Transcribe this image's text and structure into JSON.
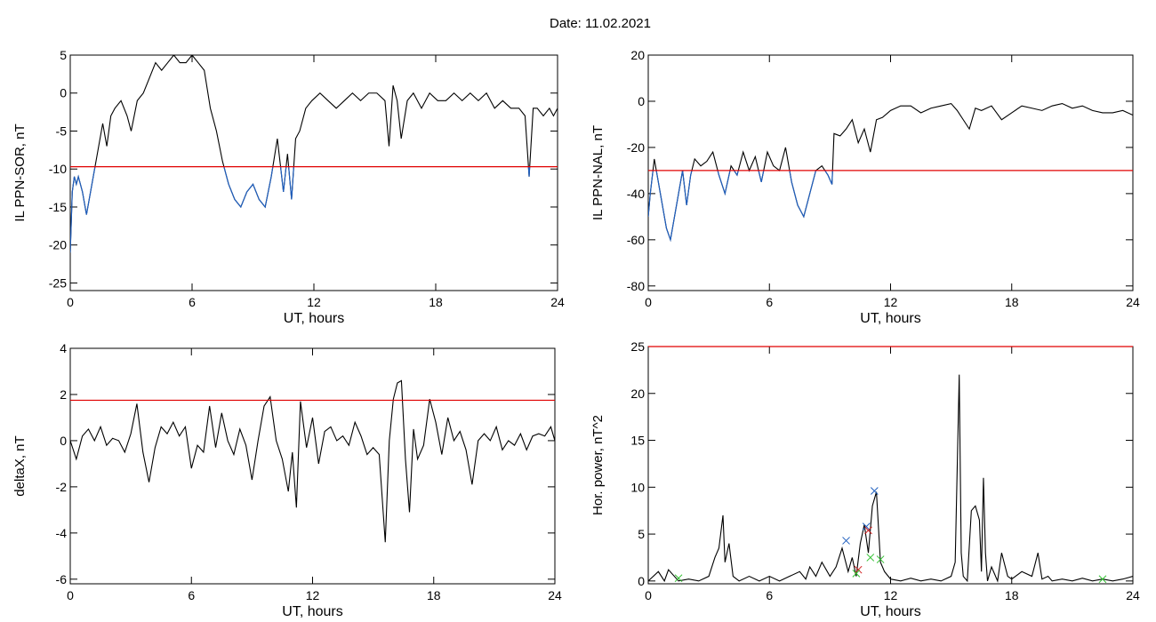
{
  "title": "Date:  11.02.2021",
  "colors": {
    "series": "#000000",
    "highlight": "#1f5fbf",
    "threshold": "#e00000",
    "marker_blue": "#1f5fbf",
    "marker_red": "#d02020",
    "marker_green": "#30c030"
  },
  "chart_data": [
    {
      "type": "line",
      "ylabel": "IL PPN-SOR, nT",
      "xlabel": "UT, hours",
      "xlim": [
        0,
        24
      ],
      "ylim": [
        -26,
        5
      ],
      "xticks": [
        0,
        6,
        12,
        18,
        24
      ],
      "yticks": [
        5,
        0,
        -5,
        -10,
        -15,
        -20,
        -25
      ],
      "threshold": -9.7,
      "highlight_below_threshold": true,
      "series": [
        {
          "x": [
            0,
            0.1,
            0.2,
            0.3,
            0.4,
            0.6,
            0.8,
            1.0,
            1.2,
            1.4,
            1.6,
            1.8,
            2.0,
            2.2,
            2.5,
            2.8,
            3.0,
            3.3,
            3.6,
            3.9,
            4.2,
            4.5,
            4.8,
            5.1,
            5.4,
            5.7,
            6.0,
            6.3,
            6.6,
            6.9,
            7.2,
            7.5,
            7.8,
            8.1,
            8.4,
            8.7,
            9.0,
            9.3,
            9.6,
            9.9,
            10.2,
            10.5,
            10.7,
            10.9,
            11.1,
            11.3,
            11.6,
            11.9,
            12.3,
            12.7,
            13.1,
            13.5,
            13.9,
            14.3,
            14.7,
            15.1,
            15.5,
            15.7,
            15.9,
            16.1,
            16.3,
            16.6,
            16.9,
            17.3,
            17.7,
            18.1,
            18.5,
            18.9,
            19.3,
            19.7,
            20.1,
            20.5,
            20.9,
            21.3,
            21.7,
            22.1,
            22.4,
            22.6,
            22.8,
            23.0,
            23.3,
            23.6,
            23.8,
            24.0
          ],
          "y": [
            -21,
            -13,
            -11,
            -12,
            -11,
            -13,
            -16,
            -13,
            -10,
            -7,
            -4,
            -7,
            -3,
            -2,
            -1,
            -3,
            -5,
            -1,
            0,
            2,
            4,
            3,
            4,
            5,
            4,
            4,
            5,
            4,
            3,
            -2,
            -5,
            -9,
            -12,
            -14,
            -15,
            -13,
            -12,
            -14,
            -15,
            -11,
            -6,
            -13,
            -8,
            -14,
            -6,
            -5,
            -2,
            -1,
            0,
            -1,
            -2,
            -1,
            0,
            -1,
            0,
            0,
            -1,
            -7,
            1,
            -1,
            -6,
            -1,
            0,
            -2,
            0,
            -1,
            -1,
            0,
            -1,
            0,
            -1,
            0,
            -2,
            -1,
            -2,
            -2,
            -3,
            -11,
            -2,
            -2,
            -3,
            -2,
            -3,
            -2
          ]
        }
      ]
    },
    {
      "type": "line",
      "ylabel": "IL PPN-NAL, nT",
      "xlabel": "UT, hours",
      "xlim": [
        0,
        24
      ],
      "ylim": [
        -82,
        20
      ],
      "xticks": [
        0,
        6,
        12,
        18,
        24
      ],
      "yticks": [
        20,
        0,
        -20,
        -40,
        -60,
        -80
      ],
      "threshold": -30,
      "highlight_below_threshold": true,
      "series": [
        {
          "x": [
            0,
            0.1,
            0.3,
            0.5,
            0.7,
            0.9,
            1.1,
            1.3,
            1.5,
            1.7,
            1.9,
            2.1,
            2.3,
            2.6,
            2.9,
            3.2,
            3.5,
            3.8,
            4.1,
            4.4,
            4.7,
            5.0,
            5.3,
            5.6,
            5.9,
            6.2,
            6.5,
            6.8,
            7.1,
            7.4,
            7.7,
            8.0,
            8.3,
            8.6,
            8.9,
            9.1,
            9.2,
            9.5,
            9.8,
            10.1,
            10.4,
            10.7,
            11.0,
            11.3,
            11.6,
            12.0,
            12.5,
            13.0,
            13.5,
            14.0,
            14.5,
            15.0,
            15.3,
            15.6,
            15.9,
            16.2,
            16.5,
            17.0,
            17.5,
            18.0,
            18.5,
            19.0,
            19.5,
            20.0,
            20.5,
            21.0,
            21.5,
            22.0,
            22.5,
            23.0,
            23.5,
            24.0
          ],
          "y": [
            -50,
            -40,
            -25,
            -35,
            -45,
            -55,
            -60,
            -50,
            -40,
            -30,
            -45,
            -32,
            -25,
            -28,
            -26,
            -22,
            -32,
            -40,
            -28,
            -32,
            -22,
            -30,
            -24,
            -35,
            -22,
            -28,
            -30,
            -20,
            -35,
            -45,
            -50,
            -40,
            -30,
            -28,
            -32,
            -36,
            -14,
            -15,
            -12,
            -8,
            -18,
            -12,
            -22,
            -8,
            -7,
            -4,
            -2,
            -2,
            -5,
            -3,
            -2,
            -1,
            -4,
            -8,
            -12,
            -3,
            -4,
            -2,
            -8,
            -5,
            -2,
            -3,
            -4,
            -2,
            -1,
            -3,
            -2,
            -4,
            -5,
            -5,
            -4,
            -6
          ]
        }
      ]
    },
    {
      "type": "line",
      "ylabel": "deltaX, nT",
      "xlabel": "UT, hours",
      "xlim": [
        0,
        24
      ],
      "ylim": [
        -6.2,
        4
      ],
      "xticks": [
        0,
        6,
        12,
        18,
        24
      ],
      "yticks": [
        4,
        2,
        0,
        -2,
        -4,
        -6
      ],
      "threshold": 1.75,
      "highlight_below_threshold": false,
      "series": [
        {
          "x": [
            0,
            0.3,
            0.6,
            0.9,
            1.2,
            1.5,
            1.8,
            2.1,
            2.4,
            2.7,
            3.0,
            3.3,
            3.6,
            3.9,
            4.2,
            4.5,
            4.8,
            5.1,
            5.4,
            5.7,
            6.0,
            6.3,
            6.6,
            6.9,
            7.2,
            7.5,
            7.8,
            8.1,
            8.4,
            8.7,
            9.0,
            9.3,
            9.6,
            9.9,
            10.2,
            10.5,
            10.8,
            11.0,
            11.2,
            11.4,
            11.7,
            12.0,
            12.3,
            12.6,
            12.9,
            13.2,
            13.5,
            13.8,
            14.1,
            14.4,
            14.7,
            15.0,
            15.3,
            15.6,
            15.8,
            16.0,
            16.2,
            16.4,
            16.6,
            16.8,
            17.0,
            17.2,
            17.5,
            17.8,
            18.1,
            18.4,
            18.7,
            19.0,
            19.3,
            19.6,
            19.9,
            20.2,
            20.5,
            20.8,
            21.1,
            21.4,
            21.7,
            22.0,
            22.3,
            22.6,
            22.9,
            23.2,
            23.5,
            23.8,
            24.0
          ],
          "y": [
            0,
            -0.8,
            0.2,
            0.5,
            0,
            0.6,
            -0.2,
            0.1,
            0,
            -0.5,
            0.3,
            1.6,
            -0.5,
            -1.8,
            -0.3,
            0.6,
            0.3,
            0.8,
            0.2,
            0.6,
            -1.2,
            -0.2,
            -0.5,
            1.5,
            -0.3,
            1.2,
            0,
            -0.6,
            0.5,
            -0.2,
            -1.7,
            0,
            1.5,
            1.9,
            0,
            -0.8,
            -2.2,
            -0.5,
            -2.9,
            1.7,
            -0.3,
            1.0,
            -1.0,
            0.4,
            0.6,
            0,
            0.2,
            -0.2,
            0.8,
            0.2,
            -0.6,
            -0.3,
            -0.6,
            -4.4,
            0,
            1.8,
            2.5,
            2.6,
            -0.8,
            -3.1,
            0.5,
            -0.8,
            -0.2,
            1.8,
            0.8,
            -0.6,
            1,
            0,
            0.4,
            -0.4,
            -1.9,
            0,
            0.3,
            0,
            0.6,
            -0.4,
            0,
            -0.2,
            0.3,
            -0.4,
            0.2,
            0.3,
            0.2,
            0.6,
            0
          ]
        }
      ]
    },
    {
      "type": "line",
      "ylabel": "Hor. power, nT^2",
      "xlabel": "UT, hours",
      "xlim": [
        0,
        24
      ],
      "ylim": [
        -0.3,
        25
      ],
      "xticks": [
        0,
        6,
        12,
        18,
        24
      ],
      "yticks": [
        25,
        20,
        15,
        10,
        5,
        0
      ],
      "threshold": 25,
      "highlight_below_threshold": false,
      "series": [
        {
          "x": [
            0,
            0.5,
            0.8,
            1.0,
            1.5,
            2.0,
            2.5,
            3.0,
            3.3,
            3.5,
            3.7,
            3.8,
            4.0,
            4.2,
            4.5,
            5.0,
            5.5,
            6.0,
            6.5,
            7.0,
            7.5,
            7.8,
            8.0,
            8.3,
            8.6,
            9.0,
            9.3,
            9.6,
            9.9,
            10.1,
            10.3,
            10.5,
            10.7,
            10.9,
            11.1,
            11.3,
            11.5,
            11.7,
            12.0,
            12.5,
            13.0,
            13.5,
            14.0,
            14.5,
            15.0,
            15.2,
            15.4,
            15.5,
            15.6,
            15.8,
            16.0,
            16.2,
            16.4,
            16.5,
            16.6,
            16.7,
            16.8,
            17.0,
            17.3,
            17.5,
            17.8,
            18.0,
            18.5,
            19.0,
            19.3,
            19.5,
            19.8,
            20.0,
            20.5,
            21.0,
            21.5,
            22.0,
            22.5,
            23.0,
            23.5,
            24.0
          ],
          "y": [
            0,
            1.0,
            0,
            1.2,
            0,
            0.2,
            0,
            0.5,
            2.5,
            3.5,
            7.0,
            2.0,
            4.0,
            0.5,
            0,
            0.5,
            0,
            0.5,
            0,
            0.5,
            1.0,
            0.2,
            1.5,
            0.5,
            2.0,
            0.5,
            1.5,
            3.5,
            1.0,
            2.5,
            0.5,
            4.0,
            6.0,
            3.0,
            8.0,
            9.5,
            2.0,
            1.0,
            0.2,
            0,
            0.3,
            0,
            0.2,
            0,
            0.5,
            2.0,
            22.0,
            3.0,
            0.5,
            0,
            7.5,
            8.0,
            6.5,
            1.0,
            11.0,
            3.0,
            0,
            1.5,
            0,
            3.0,
            0.5,
            0.2,
            1.0,
            0.5,
            3.0,
            0.2,
            0.5,
            0,
            0.2,
            0,
            0.3,
            0,
            0.2,
            0,
            0.2,
            0.5
          ]
        }
      ],
      "markers": [
        {
          "x": 9.8,
          "y": 4.3,
          "color": "blue"
        },
        {
          "x": 10.8,
          "y": 5.8,
          "color": "blue"
        },
        {
          "x": 11.2,
          "y": 9.6,
          "color": "blue"
        },
        {
          "x": 10.4,
          "y": 1.2,
          "color": "red"
        },
        {
          "x": 10.9,
          "y": 5.4,
          "color": "red"
        },
        {
          "x": 1.5,
          "y": 0.3,
          "color": "green"
        },
        {
          "x": 10.3,
          "y": 0.8,
          "color": "green"
        },
        {
          "x": 11.0,
          "y": 2.5,
          "color": "green"
        },
        {
          "x": 11.5,
          "y": 2.3,
          "color": "green"
        },
        {
          "x": 22.5,
          "y": 0.2,
          "color": "green"
        }
      ]
    }
  ]
}
